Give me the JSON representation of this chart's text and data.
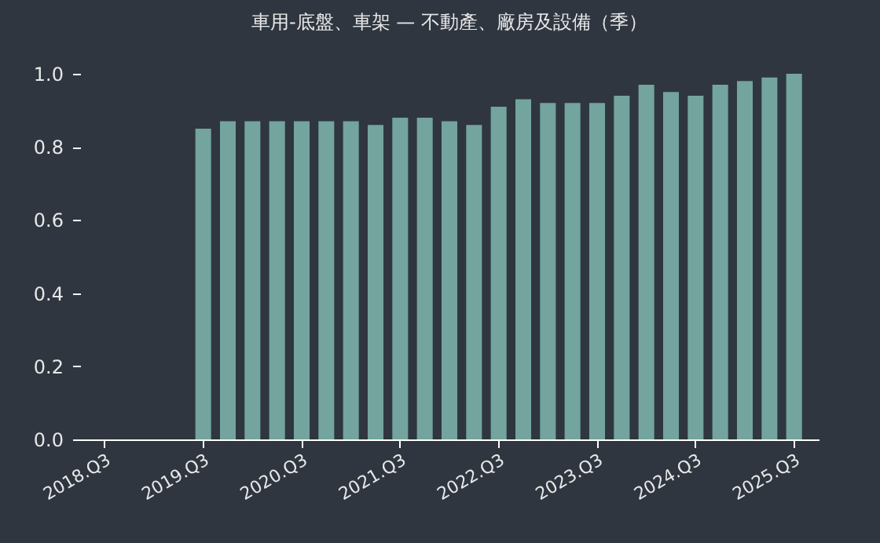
{
  "chart_data": {
    "type": "bar",
    "title": "車用-底盤、車架 — 不動產、廠房及設備（季）",
    "categories": [
      "2018.Q3",
      null,
      null,
      null,
      "2019.Q3",
      null,
      null,
      null,
      "2020.Q3",
      null,
      null,
      null,
      "2021.Q3",
      null,
      null,
      null,
      "2022.Q3",
      null,
      null,
      null,
      "2023.Q3",
      null,
      null,
      null,
      "2024.Q3",
      null,
      null,
      null,
      "2025.Q3"
    ],
    "values": [
      null,
      null,
      null,
      null,
      0.85,
      0.87,
      0.87,
      0.87,
      0.87,
      0.87,
      0.87,
      0.86,
      0.88,
      0.88,
      0.87,
      0.86,
      0.91,
      0.93,
      0.92,
      0.92,
      0.92,
      0.94,
      0.97,
      0.95,
      0.94,
      0.97,
      0.98,
      0.99,
      1.0
    ],
    "color": "#73a49e",
    "ylim": [
      0,
      1
    ],
    "yticks": [
      {
        "value": 0,
        "label": "0.0"
      },
      {
        "value": 0.2,
        "label": "0.2"
      },
      {
        "value": 0.4,
        "label": "0.4"
      },
      {
        "value": 0.6,
        "label": "0.6"
      },
      {
        "value": 0.8,
        "label": "0.8"
      },
      {
        "value": 1,
        "label": "1.0"
      }
    ],
    "grid": false
  }
}
